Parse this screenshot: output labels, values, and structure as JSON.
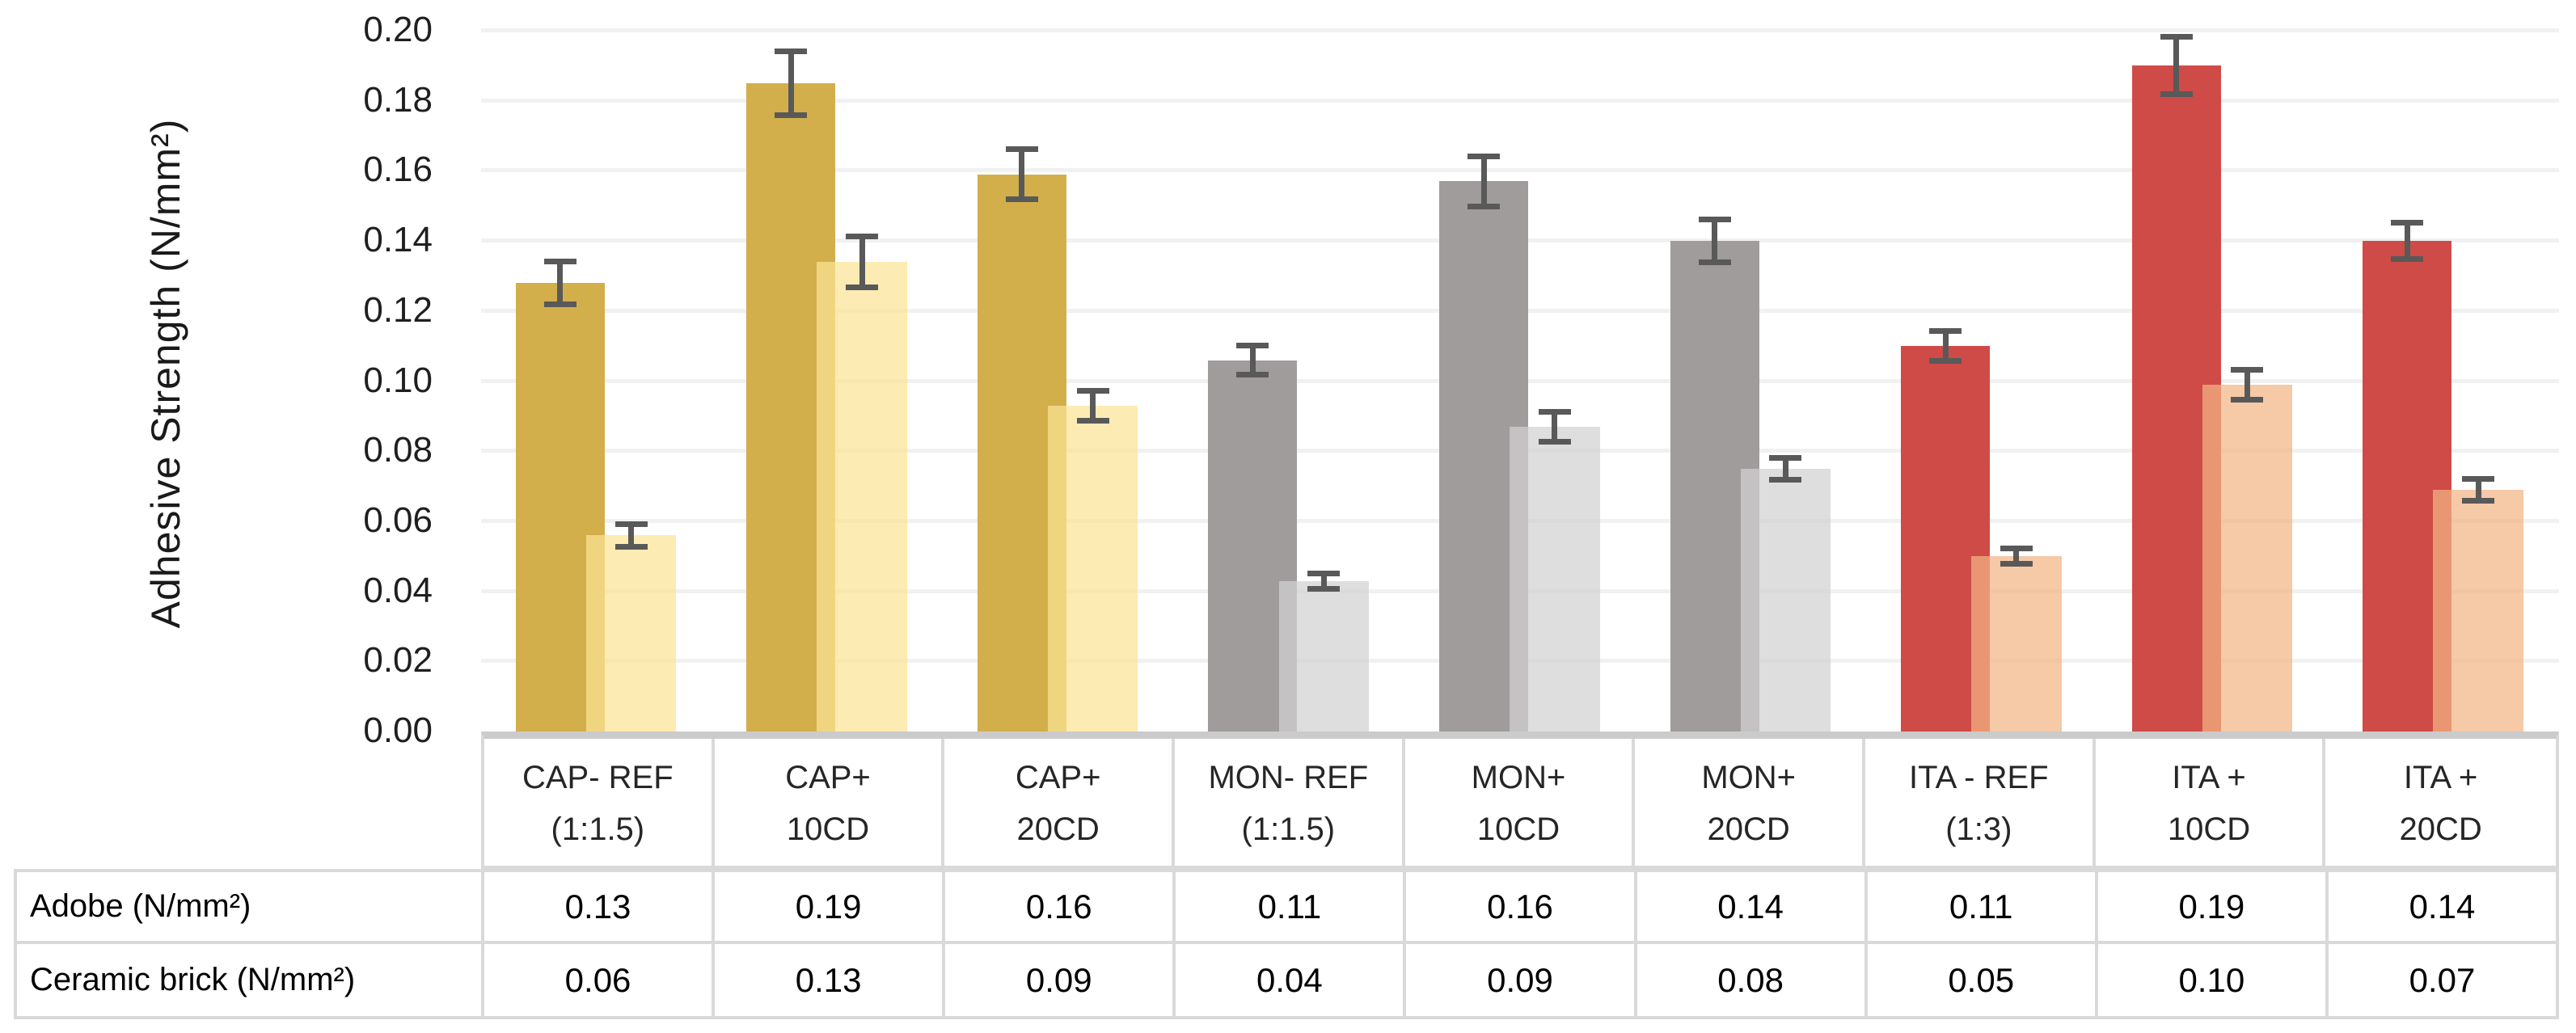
{
  "chart_data": {
    "type": "bar",
    "title": "",
    "xlabel": "",
    "ylabel": "Adhesive Strength (N/mm²)",
    "ylim": [
      0,
      0.2
    ],
    "ytick_step": 0.02,
    "yticks": [
      "0.00",
      "0.02",
      "0.04",
      "0.06",
      "0.08",
      "0.10",
      "0.12",
      "0.14",
      "0.16",
      "0.18",
      "0.20"
    ],
    "grid": true,
    "legend_position": "none",
    "error_bar_color": "#595959",
    "categories": [
      {
        "line1": "CAP- REF",
        "line2": "(1:1.5)"
      },
      {
        "line1": "CAP+",
        "line2": "10CD"
      },
      {
        "line1": "CAP+",
        "line2": "20CD"
      },
      {
        "line1": "MON- REF",
        "line2": "(1:1.5)"
      },
      {
        "line1": "MON+",
        "line2": "10CD"
      },
      {
        "line1": "MON+",
        "line2": "20CD"
      },
      {
        "line1": "ITA - REF",
        "line2": "(1:3)"
      },
      {
        "line1": "ITA +",
        "line2": "10CD"
      },
      {
        "line1": "ITA +",
        "line2": "20CD"
      }
    ],
    "series": [
      {
        "name": "Adobe (N/mm²)",
        "values": [
          0.128,
          0.185,
          0.159,
          0.106,
          0.157,
          0.14,
          0.11,
          0.19,
          0.14
        ],
        "errors": [
          0.007,
          0.01,
          0.008,
          0.005,
          0.008,
          0.007,
          0.005,
          0.009,
          0.006
        ],
        "colors": [
          "#D2AF4B",
          "#D2AF4B",
          "#D2AF4B",
          "#A09C9B",
          "#A09C9B",
          "#A09C9B",
          "#CF4B47",
          "#CF4B47",
          "#CF4B47"
        ]
      },
      {
        "name": "Ceramic brick (N/mm²)",
        "values": [
          0.056,
          0.134,
          0.093,
          0.043,
          0.087,
          0.075,
          0.05,
          0.099,
          0.069
        ],
        "errors": [
          0.004,
          0.008,
          0.005,
          0.003,
          0.005,
          0.004,
          0.003,
          0.005,
          0.004
        ],
        "colors": [
          "rgba(251,227,149,0.72)",
          "rgba(251,227,149,0.72)",
          "rgba(251,227,149,0.72)",
          "rgba(209,209,209,0.72)",
          "rgba(209,209,209,0.72)",
          "rgba(209,209,209,0.72)",
          "rgba(242,180,133,0.72)",
          "rgba(242,180,133,0.72)",
          "rgba(242,180,133,0.72)"
        ]
      }
    ]
  },
  "table": {
    "rows": [
      {
        "label": "Adobe (N/mm²)",
        "values": [
          "0.13",
          "0.19",
          "0.16",
          "0.11",
          "0.16",
          "0.14",
          "0.11",
          "0.19",
          "0.14"
        ]
      },
      {
        "label": "Ceramic brick (N/mm²)",
        "values": [
          "0.06",
          "0.13",
          "0.09",
          "0.04",
          "0.09",
          "0.08",
          "0.05",
          "0.10",
          "0.07"
        ]
      }
    ]
  }
}
